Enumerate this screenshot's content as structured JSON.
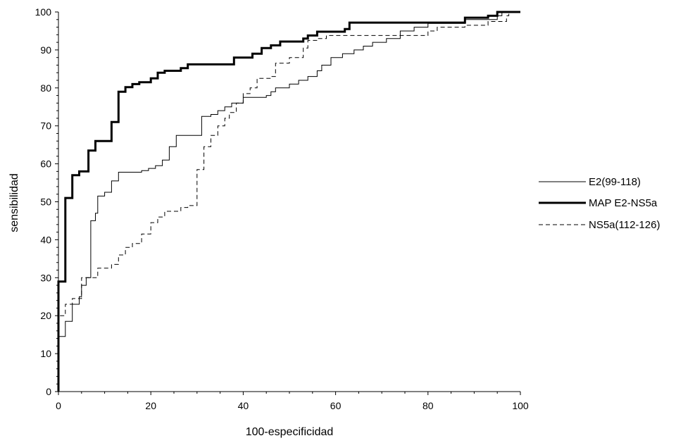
{
  "chart_data": {
    "type": "line",
    "xlabel": "100-especificidad",
    "ylabel": "sensibilidad",
    "xlim": [
      0,
      100
    ],
    "ylim": [
      0,
      100
    ],
    "x_ticks": [
      "0",
      "20",
      "40",
      "60",
      "80",
      "100"
    ],
    "y_ticks": [
      "0",
      "10",
      "20",
      "30",
      "40",
      "50",
      "60",
      "70",
      "80",
      "90",
      "100"
    ],
    "grid": false,
    "legend_position": "right",
    "series": [
      {
        "name": "E2(99-118)",
        "style": "thin-solid",
        "color": "#000000",
        "points": [
          [
            0,
            0
          ],
          [
            0,
            14.5
          ],
          [
            1.5,
            14.5
          ],
          [
            1.5,
            18.5
          ],
          [
            3,
            18.5
          ],
          [
            3,
            23
          ],
          [
            4.5,
            23
          ],
          [
            4.5,
            25
          ],
          [
            5,
            25
          ],
          [
            5,
            28
          ],
          [
            6,
            28
          ],
          [
            6,
            30
          ],
          [
            7,
            30
          ],
          [
            7,
            45
          ],
          [
            8,
            45
          ],
          [
            8,
            47
          ],
          [
            8.5,
            47
          ],
          [
            8.5,
            51.5
          ],
          [
            10,
            51.5
          ],
          [
            10,
            52.5
          ],
          [
            11.5,
            52.5
          ],
          [
            11.5,
            55.5
          ],
          [
            13,
            55.5
          ],
          [
            13,
            57.8
          ],
          [
            18,
            57.8
          ],
          [
            18,
            58.2
          ],
          [
            19.5,
            58.2
          ],
          [
            19.5,
            58.8
          ],
          [
            21,
            58.8
          ],
          [
            21,
            59.5
          ],
          [
            22.5,
            59.5
          ],
          [
            22.5,
            61
          ],
          [
            24,
            61
          ],
          [
            24,
            64.5
          ],
          [
            25.5,
            64.5
          ],
          [
            25.5,
            67.5
          ],
          [
            31,
            67.5
          ],
          [
            31,
            72.5
          ],
          [
            33,
            72.5
          ],
          [
            33,
            73
          ],
          [
            34.5,
            73
          ],
          [
            34.5,
            74
          ],
          [
            36,
            74
          ],
          [
            36,
            75
          ],
          [
            37.5,
            75
          ],
          [
            37.5,
            76
          ],
          [
            40,
            76
          ],
          [
            40,
            77.5
          ],
          [
            45,
            77.5
          ],
          [
            45,
            78
          ],
          [
            46,
            78
          ],
          [
            46,
            79
          ],
          [
            47,
            79
          ],
          [
            47,
            80
          ],
          [
            50,
            80
          ],
          [
            50,
            81
          ],
          [
            52,
            81
          ],
          [
            52,
            82
          ],
          [
            54,
            82
          ],
          [
            54,
            83
          ],
          [
            56,
            83
          ],
          [
            56,
            84.5
          ],
          [
            57,
            84.5
          ],
          [
            57,
            86
          ],
          [
            59,
            86
          ],
          [
            59,
            88
          ],
          [
            61.5,
            88
          ],
          [
            61.5,
            89
          ],
          [
            64,
            89
          ],
          [
            64,
            90
          ],
          [
            66,
            90
          ],
          [
            66,
            91
          ],
          [
            68,
            91
          ],
          [
            68,
            92
          ],
          [
            71,
            92
          ],
          [
            71,
            93
          ],
          [
            74,
            93
          ],
          [
            74,
            95
          ],
          [
            77,
            95
          ],
          [
            77,
            96
          ],
          [
            80,
            96
          ],
          [
            80,
            97
          ],
          [
            88,
            97
          ],
          [
            88,
            98
          ],
          [
            95,
            98
          ],
          [
            95,
            99
          ],
          [
            96,
            99
          ],
          [
            96,
            100
          ],
          [
            100,
            100
          ]
        ]
      },
      {
        "name": "MAP E2-NS5a",
        "style": "thick-solid",
        "color": "#000000",
        "points": [
          [
            0,
            0
          ],
          [
            0,
            29
          ],
          [
            1.5,
            29
          ],
          [
            1.5,
            51
          ],
          [
            3,
            51
          ],
          [
            3,
            57
          ],
          [
            4.5,
            57
          ],
          [
            4.5,
            58
          ],
          [
            6.5,
            58
          ],
          [
            6.5,
            63.5
          ],
          [
            8,
            63.5
          ],
          [
            8,
            66
          ],
          [
            11.5,
            66
          ],
          [
            11.5,
            71
          ],
          [
            13,
            71
          ],
          [
            13,
            79
          ],
          [
            14.5,
            79
          ],
          [
            14.5,
            80.2
          ],
          [
            16,
            80.2
          ],
          [
            16,
            81
          ],
          [
            17.5,
            81
          ],
          [
            17.5,
            81.5
          ],
          [
            20,
            81.5
          ],
          [
            20,
            82.5
          ],
          [
            21.5,
            82.5
          ],
          [
            21.5,
            84
          ],
          [
            23,
            84
          ],
          [
            23,
            84.5
          ],
          [
            26.5,
            84.5
          ],
          [
            26.5,
            85.2
          ],
          [
            28,
            85.2
          ],
          [
            28,
            86.2
          ],
          [
            38,
            86.2
          ],
          [
            38,
            88
          ],
          [
            42,
            88
          ],
          [
            42,
            89
          ],
          [
            44,
            89
          ],
          [
            44,
            90.5
          ],
          [
            46,
            90.5
          ],
          [
            46,
            91.2
          ],
          [
            48,
            91.2
          ],
          [
            48,
            92.2
          ],
          [
            53,
            92.2
          ],
          [
            53,
            93
          ],
          [
            54,
            93
          ],
          [
            54,
            93.8
          ],
          [
            56,
            93.8
          ],
          [
            56,
            94.8
          ],
          [
            62,
            94.8
          ],
          [
            62,
            95.5
          ],
          [
            63,
            95.5
          ],
          [
            63,
            97.2
          ],
          [
            88,
            97.2
          ],
          [
            88,
            98.5
          ],
          [
            93,
            98.5
          ],
          [
            93,
            99
          ],
          [
            95,
            99
          ],
          [
            95,
            100
          ],
          [
            100,
            100
          ]
        ]
      },
      {
        "name": "NS5a(112-126)",
        "style": "dashed",
        "color": "#000000",
        "points": [
          [
            0,
            0
          ],
          [
            0,
            20
          ],
          [
            1.5,
            20
          ],
          [
            1.5,
            23
          ],
          [
            3,
            23
          ],
          [
            3,
            24.5
          ],
          [
            5,
            24.5
          ],
          [
            5,
            30
          ],
          [
            8.5,
            30
          ],
          [
            8.5,
            32.5
          ],
          [
            11.5,
            32.5
          ],
          [
            11.5,
            33.5
          ],
          [
            13,
            33.5
          ],
          [
            13,
            36
          ],
          [
            14.5,
            36
          ],
          [
            14.5,
            38
          ],
          [
            16,
            38
          ],
          [
            16,
            39
          ],
          [
            18,
            39
          ],
          [
            18,
            41.5
          ],
          [
            20,
            41.5
          ],
          [
            20,
            44.5
          ],
          [
            21.5,
            44.5
          ],
          [
            21.5,
            46
          ],
          [
            23,
            46
          ],
          [
            23,
            47.5
          ],
          [
            26.5,
            47.5
          ],
          [
            26.5,
            48.5
          ],
          [
            28,
            48.5
          ],
          [
            28,
            49
          ],
          [
            30,
            49
          ],
          [
            30,
            58.5
          ],
          [
            31.5,
            58.5
          ],
          [
            31.5,
            64.5
          ],
          [
            33,
            64.5
          ],
          [
            33,
            67.5
          ],
          [
            34.5,
            67.5
          ],
          [
            34.5,
            70
          ],
          [
            36,
            70
          ],
          [
            36,
            72
          ],
          [
            37,
            72
          ],
          [
            37,
            73.5
          ],
          [
            38.5,
            73.5
          ],
          [
            38.5,
            76
          ],
          [
            40,
            76
          ],
          [
            40,
            78.5
          ],
          [
            41.5,
            78.5
          ],
          [
            41.5,
            80
          ],
          [
            43,
            80
          ],
          [
            43,
            82.5
          ],
          [
            46,
            82.5
          ],
          [
            46,
            83
          ],
          [
            47,
            83
          ],
          [
            47,
            86.5
          ],
          [
            50,
            86.5
          ],
          [
            50,
            88
          ],
          [
            53,
            88
          ],
          [
            53,
            90.5
          ],
          [
            54,
            90.5
          ],
          [
            54,
            92.5
          ],
          [
            56,
            92.5
          ],
          [
            56,
            93
          ],
          [
            58,
            93
          ],
          [
            58,
            93.8
          ],
          [
            80,
            93.8
          ],
          [
            80,
            95
          ],
          [
            82,
            95
          ],
          [
            82,
            96
          ],
          [
            88,
            96
          ],
          [
            88,
            96.5
          ],
          [
            93,
            96.5
          ],
          [
            93,
            97.5
          ],
          [
            97,
            97.5
          ],
          [
            97,
            99
          ],
          [
            97.5,
            99
          ],
          [
            97.5,
            100
          ],
          [
            100,
            100
          ]
        ]
      }
    ]
  }
}
